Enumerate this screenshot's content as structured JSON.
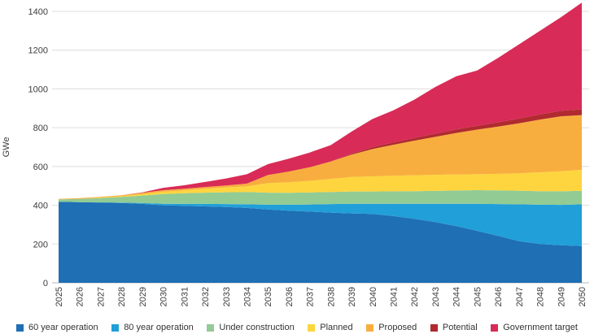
{
  "chart_data": {
    "type": "area",
    "stacked": true,
    "title": "",
    "xlabel": "",
    "ylabel": "GWe",
    "ylim": [
      0,
      1400
    ],
    "y_ticks": [
      0,
      200,
      400,
      600,
      800,
      1000,
      1200,
      1400
    ],
    "grid": "horizontal",
    "legend_position": "bottom",
    "x": [
      2025,
      2026,
      2027,
      2028,
      2029,
      2030,
      2031,
      2032,
      2033,
      2034,
      2035,
      2036,
      2037,
      2038,
      2039,
      2040,
      2041,
      2042,
      2043,
      2044,
      2045,
      2046,
      2047,
      2048,
      2049,
      2050
    ],
    "series": [
      {
        "name": "60 year operation",
        "color": "#1e6fb4",
        "values": [
          418,
          416,
          414,
          412,
          407,
          400,
          397,
          394,
          391,
          386,
          378,
          372,
          367,
          362,
          358,
          355,
          344,
          330,
          313,
          292,
          268,
          242,
          215,
          200,
          194,
          190
        ]
      },
      {
        "name": "80 year operation",
        "color": "#219fd8",
        "values": [
          0,
          0,
          1,
          2,
          4,
          8,
          10,
          13,
          15,
          19,
          25,
          31,
          37,
          44,
          50,
          53,
          64,
          78,
          95,
          116,
          140,
          164,
          190,
          203,
          208,
          215
        ]
      },
      {
        "name": "Under construction",
        "color": "#92cb94",
        "values": [
          12,
          17,
          22,
          29,
          39,
          50,
          55,
          58,
          61,
          63,
          62,
          61,
          62,
          62,
          63,
          63,
          64,
          65,
          66,
          68,
          70,
          71,
          70,
          70,
          70,
          70
        ]
      },
      {
        "name": "Planned",
        "color": "#fed53f",
        "values": [
          0,
          0,
          2,
          4,
          8,
          12,
          15,
          20,
          25,
          30,
          49,
          55,
          60,
          68,
          75,
          78,
          80,
          82,
          83,
          83,
          82,
          85,
          90,
          97,
          103,
          108
        ]
      },
      {
        "name": "Proposed",
        "color": "#f8ae3e",
        "values": [
          3,
          4,
          4,
          5,
          6,
          8,
          8,
          9,
          10,
          14,
          42,
          55,
          70,
          90,
          115,
          141,
          160,
          178,
          196,
          214,
          230,
          244,
          258,
          272,
          284,
          282
        ]
      },
      {
        "name": "Potential",
        "color": "#b02a30",
        "values": [
          0,
          0,
          0,
          0,
          0,
          0,
          0,
          0,
          0,
          0,
          0,
          0,
          0,
          0,
          5,
          10,
          12,
          14,
          16,
          18,
          20,
          22,
          24,
          26,
          28,
          30
        ]
      },
      {
        "name": "Government target",
        "color": "#d92b57",
        "values": [
          0,
          0,
          0,
          0,
          2,
          12,
          18,
          26,
          36,
          48,
          56,
          66,
          76,
          84,
          114,
          145,
          166,
          198,
          241,
          274,
          285,
          332,
          383,
          432,
          483,
          550
        ]
      }
    ]
  }
}
